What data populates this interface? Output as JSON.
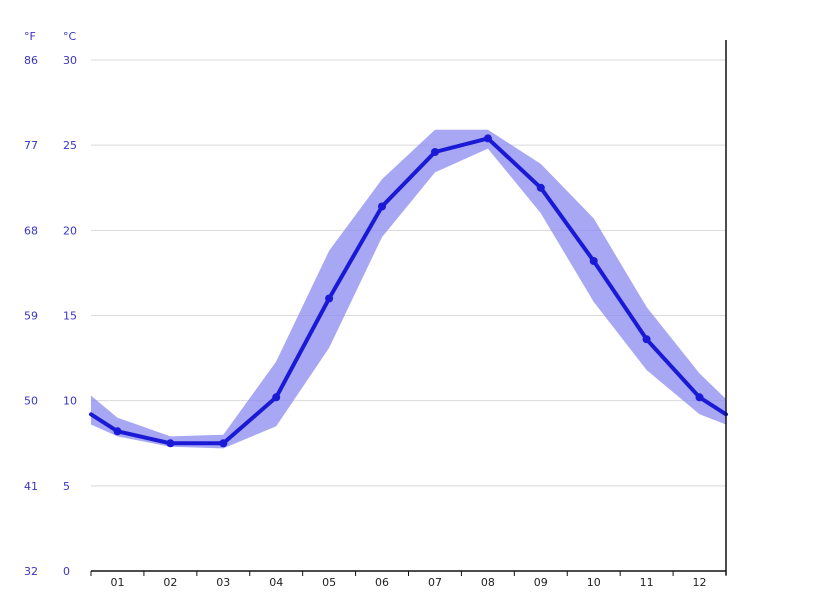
{
  "chart_data": {
    "type": "line",
    "title": "",
    "xlabel": "",
    "ylabel": "",
    "unit_left": "°F",
    "unit_right": "°C",
    "categories": [
      "01",
      "02",
      "03",
      "04",
      "05",
      "06",
      "07",
      "08",
      "09",
      "10",
      "11",
      "12"
    ],
    "ylim": [
      0,
      30
    ],
    "yticks_c": [
      "0",
      "5",
      "10",
      "15",
      "20",
      "25",
      "30"
    ],
    "yticks_f": [
      "32",
      "41",
      "50",
      "59",
      "68",
      "77",
      "86"
    ],
    "grid": true,
    "series": [
      {
        "color": "#1a1ad6",
        "x": [
          0.5,
          1.5,
          2.5,
          3.5,
          4.5,
          5.5,
          6.5,
          7.5,
          8.5,
          9.5,
          10.5,
          11.5
        ],
        "values": [
          8.2,
          7.5,
          7.5,
          10.2,
          16.0,
          21.4,
          24.6,
          25.4,
          22.5,
          18.2,
          13.6,
          10.2
        ],
        "start_value": 9.2,
        "end_value": 9.2
      }
    ],
    "band": {
      "color": "#8a8af0",
      "upper": [
        9.0,
        7.9,
        8.0,
        12.3,
        18.8,
        23.0,
        25.9,
        25.9,
        23.9,
        20.7,
        15.5,
        11.6
      ],
      "lower": [
        7.9,
        7.3,
        7.2,
        8.5,
        13.1,
        19.6,
        23.4,
        24.8,
        21.0,
        15.8,
        11.8,
        9.2
      ],
      "start_upper": 10.3,
      "start_lower": 8.6,
      "end_upper": 10.1,
      "end_lower": 8.6
    }
  }
}
